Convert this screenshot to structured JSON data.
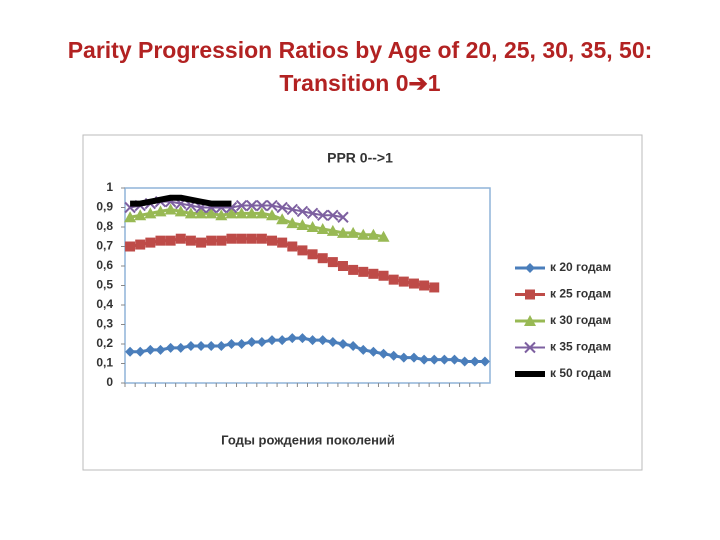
{
  "chart_data": {
    "type": "line",
    "slide_title": "Parity Progression Ratios by Age of 20, 25, 30, 35, 50: Transition 0➔1",
    "title": "PPR 0-->1",
    "x_label": "Годы рождения поколений",
    "categories": [
      null,
      null,
      null,
      null,
      null,
      null,
      null,
      null,
      null,
      null,
      null,
      null,
      null,
      null,
      null,
      null,
      null,
      null,
      null,
      null,
      null,
      null,
      null,
      null,
      null,
      null,
      null,
      null,
      null,
      null,
      null,
      null,
      null,
      null,
      null,
      null
    ],
    "ylim": [
      0,
      1
    ],
    "yticks": [
      0,
      {
        "value": 0.1,
        "label": "0,1"
      },
      {
        "value": 0.2,
        "label": "0,2"
      },
      {
        "value": 0.3,
        "label": "0,3"
      },
      {
        "value": 0.4,
        "label": "0,4"
      },
      {
        "value": 0.5,
        "label": "0,5"
      },
      {
        "value": 0.6,
        "label": "0,6"
      },
      {
        "value": 0.7,
        "label": "0,7"
      },
      {
        "value": 0.8,
        "label": "0,8"
      },
      {
        "value": 0.9,
        "label": "0,9"
      },
      1
    ],
    "grid": false,
    "legend": "right",
    "series": [
      {
        "name": "к 20 годам",
        "color": "#4a7ebb",
        "marker": "diamond",
        "line_width": 3,
        "values": [
          0.16,
          0.16,
          0.17,
          0.17,
          0.18,
          0.18,
          0.19,
          0.19,
          0.19,
          0.19,
          0.2,
          0.2,
          0.21,
          0.21,
          0.22,
          0.22,
          0.23,
          0.23,
          0.22,
          0.22,
          0.21,
          0.2,
          0.19,
          0.17,
          0.16,
          0.15,
          0.14,
          0.13,
          0.13,
          0.12,
          0.12,
          0.12,
          0.12,
          0.11,
          0.11,
          0.11
        ]
      },
      {
        "name": "к 25 годам",
        "color": "#be4b48",
        "marker": "square",
        "line_width": 3,
        "values": [
          0.7,
          0.71,
          0.72,
          0.73,
          0.73,
          0.74,
          0.73,
          0.72,
          0.73,
          0.73,
          0.74,
          0.74,
          0.74,
          0.74,
          0.73,
          0.72,
          0.7,
          0.68,
          0.66,
          0.64,
          0.62,
          0.6,
          0.58,
          0.57,
          0.56,
          0.55,
          0.53,
          0.52,
          0.51,
          0.5,
          0.49,
          null,
          null,
          null,
          null,
          null
        ]
      },
      {
        "name": "к 30 годам",
        "color": "#98b954",
        "marker": "triangle",
        "line_width": 3,
        "values": [
          0.85,
          0.86,
          0.87,
          0.88,
          0.89,
          0.88,
          0.87,
          0.87,
          0.87,
          0.86,
          0.87,
          0.87,
          0.87,
          0.87,
          0.86,
          0.84,
          0.82,
          0.81,
          0.8,
          0.79,
          0.78,
          0.77,
          0.77,
          0.76,
          0.76,
          0.75,
          null,
          null,
          null,
          null,
          null,
          null,
          null,
          null,
          null,
          null
        ]
      },
      {
        "name": "к 35 годам",
        "color": "#7d60a0",
        "marker": "x",
        "line_width": 2,
        "values": [
          0.9,
          0.91,
          0.92,
          0.93,
          0.93,
          0.92,
          0.91,
          0.9,
          0.9,
          0.9,
          0.9,
          0.91,
          0.91,
          0.91,
          0.91,
          0.9,
          0.89,
          0.88,
          0.87,
          0.86,
          0.86,
          0.85,
          null,
          null,
          null,
          null,
          null,
          null,
          null,
          null,
          null,
          null,
          null,
          null,
          null,
          null
        ]
      },
      {
        "name": "к 50 годам",
        "color": "#000000",
        "marker": "none",
        "line_width": 6,
        "values": [
          0.92,
          0.92,
          0.93,
          0.94,
          0.95,
          0.95,
          0.94,
          0.93,
          0.92,
          0.92,
          0.92,
          null,
          null,
          null,
          null,
          null,
          null,
          null,
          null,
          null,
          null,
          null,
          null,
          null,
          null,
          null,
          null,
          null,
          null,
          null,
          null,
          null,
          null,
          null,
          null,
          null
        ]
      }
    ]
  }
}
